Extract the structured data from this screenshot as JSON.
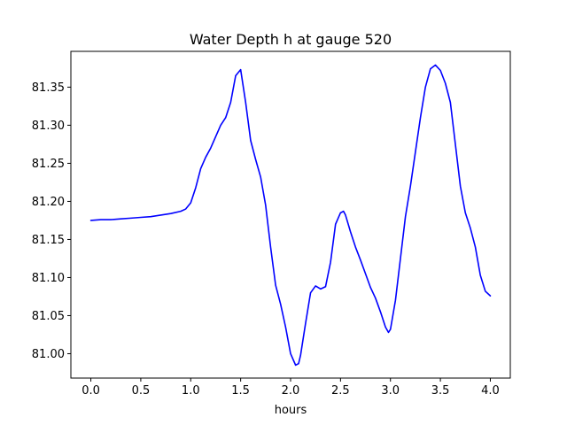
{
  "chart_data": {
    "type": "line",
    "title": "Water Depth h at gauge 520",
    "xlabel": "hours",
    "ylabel": "",
    "xlim": [
      -0.2,
      4.2
    ],
    "ylim": [
      80.968,
      81.397
    ],
    "xticks": [
      0.0,
      0.5,
      1.0,
      1.5,
      2.0,
      2.5,
      3.0,
      3.5,
      4.0
    ],
    "xtick_labels": [
      "0.0",
      "0.5",
      "1.0",
      "1.5",
      "2.0",
      "2.5",
      "3.0",
      "3.5",
      "4.0"
    ],
    "yticks": [
      81.0,
      81.05,
      81.1,
      81.15,
      81.2,
      81.25,
      81.3,
      81.35
    ],
    "ytick_labels": [
      "81.00",
      "81.05",
      "81.10",
      "81.15",
      "81.20",
      "81.25",
      "81.30",
      "81.35"
    ],
    "grid": false,
    "series": [
      {
        "color": "#0000ff",
        "x": [
          0.0,
          0.1,
          0.2,
          0.3,
          0.4,
          0.5,
          0.6,
          0.7,
          0.8,
          0.9,
          0.95,
          1.0,
          1.05,
          1.1,
          1.15,
          1.2,
          1.25,
          1.3,
          1.35,
          1.4,
          1.45,
          1.5,
          1.55,
          1.6,
          1.65,
          1.7,
          1.75,
          1.8,
          1.85,
          1.9,
          1.95,
          2.0,
          2.05,
          2.08,
          2.1,
          2.15,
          2.2,
          2.25,
          2.3,
          2.35,
          2.4,
          2.45,
          2.5,
          2.53,
          2.55,
          2.6,
          2.65,
          2.7,
          2.75,
          2.8,
          2.85,
          2.9,
          2.95,
          2.98,
          3.0,
          3.05,
          3.1,
          3.15,
          3.2,
          3.25,
          3.3,
          3.35,
          3.4,
          3.45,
          3.5,
          3.55,
          3.6,
          3.65,
          3.7,
          3.75,
          3.8,
          3.85,
          3.9,
          3.95,
          4.0
        ],
        "y": [
          81.175,
          81.176,
          81.176,
          81.177,
          81.178,
          81.179,
          81.18,
          81.182,
          81.184,
          81.187,
          81.19,
          81.198,
          81.218,
          81.243,
          81.258,
          81.27,
          81.285,
          81.3,
          81.31,
          81.33,
          81.365,
          81.373,
          81.33,
          81.28,
          81.255,
          81.232,
          81.195,
          81.14,
          81.09,
          81.065,
          81.035,
          81.0,
          80.985,
          80.987,
          80.998,
          81.04,
          81.08,
          81.089,
          81.085,
          81.088,
          81.12,
          81.17,
          81.185,
          81.187,
          81.182,
          81.16,
          81.14,
          81.123,
          81.105,
          81.087,
          81.073,
          81.055,
          81.035,
          81.028,
          81.032,
          81.07,
          81.125,
          81.18,
          81.22,
          81.265,
          81.31,
          81.35,
          81.374,
          81.379,
          81.372,
          81.355,
          81.33,
          81.275,
          81.22,
          81.185,
          81.165,
          81.14,
          81.103,
          81.082,
          81.076
        ]
      }
    ]
  }
}
